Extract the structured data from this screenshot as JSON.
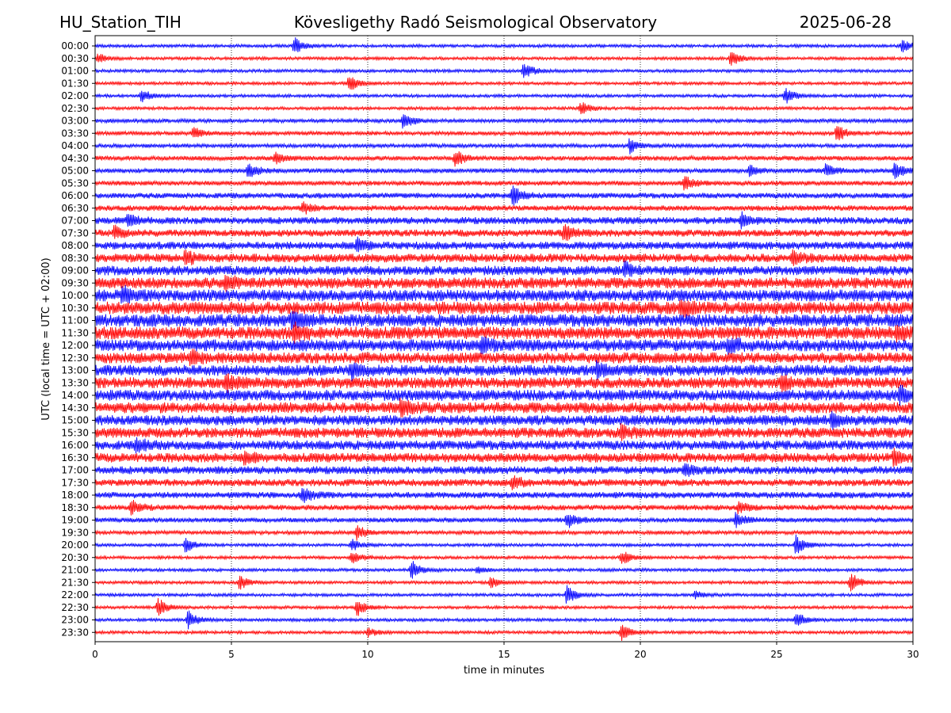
{
  "header": {
    "station": "HU_Station_TIH",
    "observatory": "Kövesligethy Radó Seismological Observatory",
    "date": "2025-06-28"
  },
  "chart_data": {
    "type": "line",
    "subtype": "helicorder",
    "xlabel": "time in minutes",
    "ylabel": "UTC (local time = UTC + 02:00)",
    "xlim": [
      0,
      30
    ],
    "x_ticks": [
      "0",
      "5",
      "10",
      "15",
      "20",
      "25",
      "30"
    ],
    "grid": "vertical dotted lines every 5 minutes",
    "line_colors": [
      "#0000ff",
      "#ff0000"
    ],
    "color_rule": "alternating rows, starting with blue at 00:00",
    "rows": [
      {
        "label": "00:00",
        "noise": 2,
        "events": [
          [
            7.3,
            12
          ],
          [
            29.6,
            9
          ]
        ]
      },
      {
        "label": "00:30",
        "noise": 2,
        "events": [
          [
            23.3,
            12
          ],
          [
            0.1,
            6
          ]
        ]
      },
      {
        "label": "01:00",
        "noise": 2,
        "events": [
          [
            15.7,
            12
          ]
        ]
      },
      {
        "label": "01:30",
        "noise": 2,
        "events": [
          [
            9.3,
            12
          ]
        ]
      },
      {
        "label": "02:00",
        "noise": 2,
        "events": [
          [
            1.7,
            10
          ],
          [
            25.3,
            11
          ]
        ]
      },
      {
        "label": "02:30",
        "noise": 2,
        "events": [
          [
            17.8,
            10
          ]
        ]
      },
      {
        "label": "03:00",
        "noise": 2.5,
        "events": [
          [
            11.3,
            12
          ]
        ]
      },
      {
        "label": "03:30",
        "noise": 2.5,
        "events": [
          [
            3.6,
            8
          ],
          [
            27.2,
            11
          ]
        ]
      },
      {
        "label": "04:00",
        "noise": 2.5,
        "events": [
          [
            19.6,
            10
          ]
        ]
      },
      {
        "label": "04:30",
        "noise": 3,
        "events": [
          [
            13.2,
            12
          ],
          [
            6.6,
            8
          ]
        ]
      },
      {
        "label": "05:00",
        "noise": 3,
        "events": [
          [
            5.6,
            10
          ],
          [
            24.0,
            7
          ],
          [
            26.8,
            9
          ],
          [
            29.3,
            11
          ]
        ]
      },
      {
        "label": "05:30",
        "noise": 3,
        "events": [
          [
            21.6,
            10
          ]
        ]
      },
      {
        "label": "06:00",
        "noise": 3.5,
        "events": [
          [
            15.3,
            13
          ]
        ]
      },
      {
        "label": "06:30",
        "noise": 3.5,
        "events": [
          [
            7.6,
            8
          ]
        ]
      },
      {
        "label": "07:00",
        "noise": 4.5,
        "events": [
          [
            1.2,
            8
          ],
          [
            23.7,
            9
          ]
        ]
      },
      {
        "label": "07:30",
        "noise": 4.5,
        "events": [
          [
            17.2,
            10
          ],
          [
            0.7,
            8
          ]
        ]
      },
      {
        "label": "08:00",
        "noise": 5,
        "events": [
          [
            9.6,
            8
          ]
        ]
      },
      {
        "label": "08:30",
        "noise": 5.5,
        "events": [
          [
            3.3,
            9
          ],
          [
            25.6,
            8
          ]
        ]
      },
      {
        "label": "09:00",
        "noise": 6,
        "events": [
          [
            19.4,
            9
          ]
        ]
      },
      {
        "label": "09:30",
        "noise": 7,
        "events": [
          [
            4.8,
            9
          ]
        ]
      },
      {
        "label": "10:00",
        "noise": 7.5,
        "events": [
          [
            1.0,
            9
          ]
        ]
      },
      {
        "label": "10:30",
        "noise": 8,
        "events": [
          [
            21.5,
            10
          ]
        ]
      },
      {
        "label": "11:00",
        "noise": 8,
        "events": [
          [
            7.2,
            9
          ]
        ]
      },
      {
        "label": "11:30",
        "noise": 8,
        "events": [
          [
            7.3,
            10
          ],
          [
            29.4,
            9
          ]
        ]
      },
      {
        "label": "12:00",
        "noise": 7.5,
        "events": [
          [
            14.2,
            10
          ],
          [
            23.2,
            10
          ]
        ]
      },
      {
        "label": "12:30",
        "noise": 7,
        "events": [
          [
            3.5,
            8
          ]
        ]
      },
      {
        "label": "13:00",
        "noise": 7,
        "events": [
          [
            9.4,
            9
          ],
          [
            18.4,
            9
          ]
        ]
      },
      {
        "label": "13:30",
        "noise": 7,
        "events": [
          [
            4.8,
            11
          ],
          [
            25.2,
            9
          ]
        ]
      },
      {
        "label": "14:00",
        "noise": 7,
        "events": [
          [
            29.5,
            10
          ]
        ]
      },
      {
        "label": "14:30",
        "noise": 7,
        "events": [
          [
            11.2,
            10
          ]
        ]
      },
      {
        "label": "15:00",
        "noise": 6.5,
        "events": [
          [
            27.0,
            9
          ]
        ]
      },
      {
        "label": "15:30",
        "noise": 6.5,
        "events": [
          [
            19.3,
            8
          ]
        ]
      },
      {
        "label": "16:00",
        "noise": 6,
        "events": [
          [
            1.5,
            8
          ]
        ]
      },
      {
        "label": "16:30",
        "noise": 6,
        "events": [
          [
            29.3,
            10
          ],
          [
            5.5,
            8
          ]
        ]
      },
      {
        "label": "17:00",
        "noise": 5,
        "events": [
          [
            21.6,
            8
          ]
        ]
      },
      {
        "label": "17:30",
        "noise": 4.5,
        "events": [
          [
            15.3,
            9
          ]
        ]
      },
      {
        "label": "18:00",
        "noise": 4,
        "events": [
          [
            7.6,
            10
          ]
        ]
      },
      {
        "label": "18:30",
        "noise": 3.5,
        "events": [
          [
            1.3,
            10
          ],
          [
            23.6,
            8
          ]
        ]
      },
      {
        "label": "19:00",
        "noise": 3,
        "events": [
          [
            17.3,
            11
          ],
          [
            23.5,
            10
          ]
        ]
      },
      {
        "label": "19:30",
        "noise": 2.5,
        "events": [
          [
            9.6,
            9
          ]
        ]
      },
      {
        "label": "20:00",
        "noise": 2,
        "events": [
          [
            3.3,
            10
          ],
          [
            9.4,
            8
          ],
          [
            25.7,
            13
          ]
        ]
      },
      {
        "label": "20:30",
        "noise": 2,
        "events": [
          [
            19.3,
            11
          ],
          [
            9.4,
            9
          ]
        ]
      },
      {
        "label": "21:00",
        "noise": 2,
        "events": [
          [
            11.6,
            13
          ],
          [
            14.0,
            5
          ]
        ]
      },
      {
        "label": "21:30",
        "noise": 2,
        "events": [
          [
            5.3,
            10
          ],
          [
            14.5,
            8
          ],
          [
            27.7,
            14
          ]
        ]
      },
      {
        "label": "22:00",
        "noise": 2,
        "events": [
          [
            17.3,
            13
          ],
          [
            22.0,
            5
          ]
        ]
      },
      {
        "label": "22:30",
        "noise": 2,
        "events": [
          [
            2.3,
            12
          ],
          [
            9.6,
            11
          ]
        ]
      },
      {
        "label": "23:00",
        "noise": 2,
        "events": [
          [
            3.4,
            12
          ],
          [
            25.7,
            11
          ]
        ]
      },
      {
        "label": "23:30",
        "noise": 2,
        "events": [
          [
            19.3,
            12
          ],
          [
            10.0,
            6
          ]
        ]
      }
    ]
  }
}
